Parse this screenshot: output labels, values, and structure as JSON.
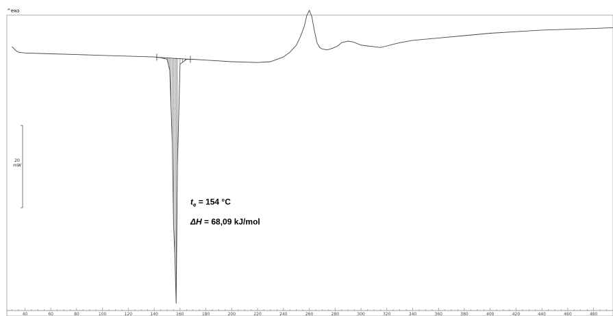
{
  "chart_data": {
    "type": "line",
    "corner_label": "^exo",
    "scale_bar": {
      "value": "20",
      "unit": "mW"
    },
    "xaxis": {
      "ticks": [
        40,
        60,
        80,
        100,
        120,
        140,
        160,
        180,
        200,
        220,
        240,
        260,
        280,
        300,
        320,
        340,
        360,
        380,
        400,
        420,
        440,
        460,
        480
      ],
      "tick_labels": [
        "40",
        "60",
        "80",
        "100",
        "120",
        "140",
        "160",
        "180",
        "200",
        "220",
        "240",
        "260",
        "280",
        "300",
        "320",
        "340",
        "360",
        "380",
        "400",
        "420",
        "440",
        "460",
        "480"
      ],
      "range": [
        26,
        495
      ]
    },
    "yaxis": {
      "range": [
        -340,
        40
      ],
      "units": "mW"
    },
    "series": [
      {
        "x": [
          30,
          33,
          35,
          40,
          60,
          80,
          100,
          120,
          140,
          145,
          150,
          152,
          154,
          155,
          156,
          157,
          158,
          160,
          165,
          170,
          180,
          200,
          220,
          230,
          240,
          245,
          250,
          253,
          256,
          258,
          260,
          262,
          264,
          266,
          268,
          270,
          274,
          278,
          282,
          285,
          290,
          294,
          300,
          305,
          310,
          315,
          320,
          325,
          330,
          340,
          360,
          380,
          400,
          420,
          440,
          460,
          480,
          495
        ],
        "y": [
          0,
          -5,
          -7,
          -8,
          -9,
          -10,
          -11,
          -12,
          -13,
          -14,
          -16,
          -30,
          -120,
          -225,
          -265,
          -325,
          -150,
          -22,
          -16,
          -16,
          -17,
          -19,
          -20,
          -19,
          -13,
          -7,
          2,
          12,
          25,
          39,
          46,
          38,
          20,
          5,
          -1,
          -3,
          -4,
          -2,
          1,
          5,
          7,
          6,
          2,
          1,
          0,
          -1,
          1,
          3,
          5,
          8,
          11,
          14,
          17,
          19,
          21,
          22,
          23,
          24
        ]
      }
    ],
    "integration": {
      "x_start": 142,
      "x_end": 168,
      "hatch_x": [
        148,
        150,
        151,
        152,
        153,
        154,
        155,
        156,
        157,
        158,
        160,
        162,
        164
      ]
    },
    "annotations": [
      {
        "x": 168,
        "y": -200,
        "main": "t",
        "sub": "e",
        "rest": " = 154 °C"
      },
      {
        "x": 168,
        "y": -225,
        "main": "ΔH",
        "sub": "",
        "rest": " = 68,09 kJ/mol"
      }
    ],
    "colors": {
      "curve": "#444444",
      "frame": "#999999",
      "fill": "#555555"
    }
  }
}
